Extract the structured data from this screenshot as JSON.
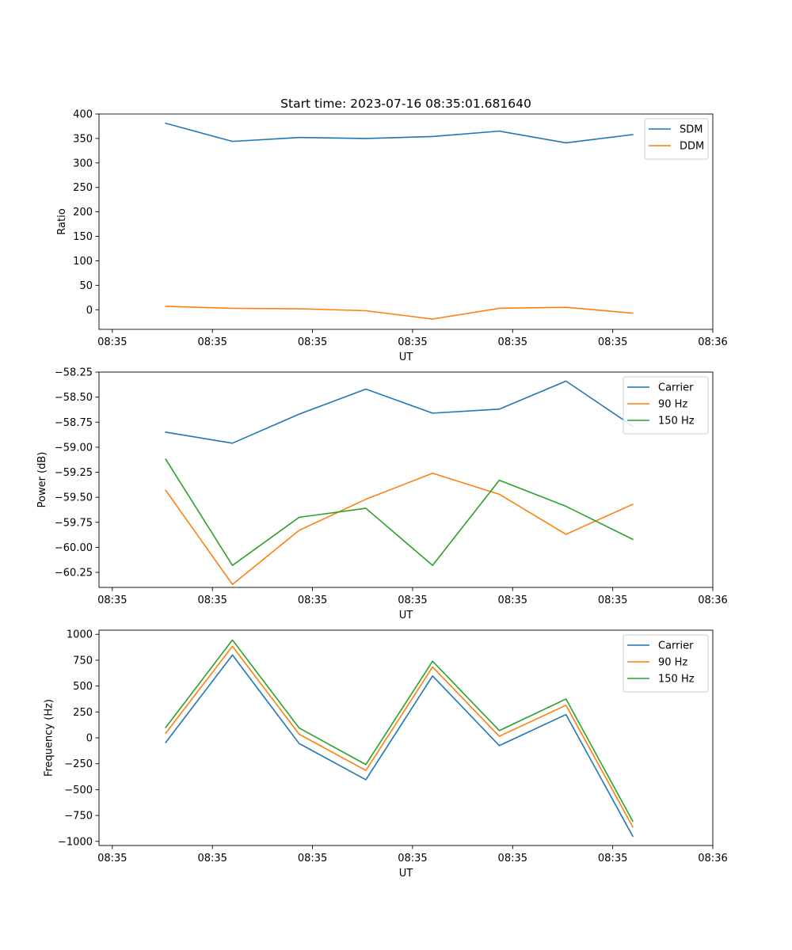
{
  "chart_data": [
    {
      "type": "line",
      "title": "Start time: 2023-07-16 08:35:01.681640",
      "xlabel": "UT",
      "ylabel": "Ratio",
      "xlim": [
        0,
        9.2
      ],
      "ylim": [
        -40,
        400
      ],
      "x_ticks": [
        0.2,
        1.7,
        3.2,
        4.7,
        6.2,
        7.7,
        9.2
      ],
      "x_tick_labels": [
        "08:35",
        "08:35",
        "08:35",
        "08:35",
        "08:35",
        "08:35",
        "08:36"
      ],
      "y_ticks": [
        0,
        50,
        100,
        150,
        200,
        250,
        300,
        350,
        400
      ],
      "y_tick_labels": [
        "0",
        "50",
        "100",
        "150",
        "200",
        "250",
        "300",
        "350",
        "400"
      ],
      "x": [
        1,
        2,
        3,
        4,
        5,
        6,
        7,
        8
      ],
      "legend_position": "top-right",
      "series": [
        {
          "name": "SDM",
          "color": "#1f77b4",
          "values": [
            381,
            344,
            352,
            350,
            354,
            365,
            341,
            358
          ]
        },
        {
          "name": "DDM",
          "color": "#ff7f0e",
          "values": [
            7,
            3,
            2,
            -2,
            -19,
            3,
            5,
            -7
          ]
        }
      ]
    },
    {
      "type": "line",
      "title": "",
      "xlabel": "UT",
      "ylabel": "Power (dB)",
      "xlim": [
        0,
        9.2
      ],
      "ylim": [
        -60.4,
        -58.25
      ],
      "x_ticks": [
        0.2,
        1.7,
        3.2,
        4.7,
        6.2,
        7.7,
        9.2
      ],
      "x_tick_labels": [
        "08:35",
        "08:35",
        "08:35",
        "08:35",
        "08:35",
        "08:35",
        "08:36"
      ],
      "y_ticks": [
        -58.25,
        -58.5,
        -58.75,
        -59.0,
        -59.25,
        -59.5,
        -59.75,
        -60.0,
        -60.25
      ],
      "y_tick_labels": [
        "−58.25",
        "−58.50",
        "−58.75",
        "−59.00",
        "−59.25",
        "−59.50",
        "−59.75",
        "−60.00",
        "−60.25"
      ],
      "x": [
        1,
        2,
        3,
        4,
        5,
        6,
        7,
        8
      ],
      "legend_position": "top-right",
      "series": [
        {
          "name": "Carrier",
          "color": "#1f77b4",
          "values": [
            -58.85,
            -58.96,
            -58.67,
            -58.42,
            -58.66,
            -58.62,
            -58.34,
            -58.79
          ]
        },
        {
          "name": "90 Hz",
          "color": "#ff7f0e",
          "values": [
            -59.43,
            -60.37,
            -59.83,
            -59.52,
            -59.26,
            -59.47,
            -59.87,
            -59.57
          ]
        },
        {
          "name": "150 Hz",
          "color": "#2ca02c",
          "values": [
            -59.12,
            -60.18,
            -59.7,
            -59.61,
            -60.18,
            -59.33,
            -59.59,
            -59.92
          ]
        }
      ]
    },
    {
      "type": "line",
      "title": "",
      "xlabel": "UT",
      "ylabel": "Frequency (Hz)",
      "xlim": [
        0,
        9.2
      ],
      "ylim": [
        -1040,
        1040
      ],
      "x_ticks": [
        0.2,
        1.7,
        3.2,
        4.7,
        6.2,
        7.7,
        9.2
      ],
      "x_tick_labels": [
        "08:35",
        "08:35",
        "08:35",
        "08:35",
        "08:35",
        "08:35",
        "08:36"
      ],
      "y_ticks": [
        1000,
        750,
        500,
        250,
        0,
        -250,
        -500,
        -750,
        -1000
      ],
      "y_tick_labels": [
        "1000",
        "750",
        "500",
        "250",
        "0",
        "−250",
        "−500",
        "−750",
        "−1000"
      ],
      "x": [
        1,
        2,
        3,
        4,
        5,
        6,
        7,
        8
      ],
      "legend_position": "top-right",
      "series": [
        {
          "name": "Carrier",
          "color": "#1f77b4",
          "values": [
            -45,
            800,
            -55,
            -405,
            598,
            -75,
            225,
            -950
          ]
        },
        {
          "name": "90 Hz",
          "color": "#ff7f0e",
          "values": [
            45,
            885,
            35,
            -315,
            685,
            15,
            315,
            -860
          ]
        },
        {
          "name": "150 Hz",
          "color": "#2ca02c",
          "values": [
            100,
            945,
            95,
            -258,
            740,
            70,
            375,
            -805
          ]
        }
      ]
    }
  ]
}
